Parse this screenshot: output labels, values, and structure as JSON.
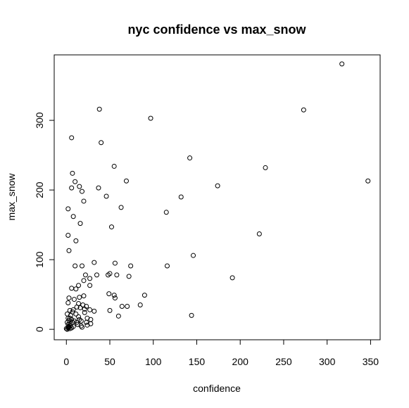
{
  "chart_data": {
    "type": "scatter",
    "title": "nyc confidence vs max_snow",
    "xlabel": "confidence",
    "ylabel": "max_snow",
    "xlim": [
      -14,
      361
    ],
    "ylim": [
      -15,
      394
    ],
    "xticks": [
      0,
      50,
      100,
      150,
      200,
      250,
      300,
      350
    ],
    "yticks": [
      0,
      100,
      200,
      300
    ],
    "grid": false,
    "legend": "none",
    "point_color": "#000000",
    "points": [
      [
        6,
        275
      ],
      [
        7,
        224
      ],
      [
        10,
        212
      ],
      [
        15,
        205
      ],
      [
        18,
        198
      ],
      [
        20,
        184
      ],
      [
        6,
        203
      ],
      [
        2,
        173
      ],
      [
        8,
        162
      ],
      [
        16,
        152
      ],
      [
        2,
        135
      ],
      [
        11,
        127
      ],
      [
        3,
        113
      ],
      [
        38,
        316
      ],
      [
        40,
        268
      ],
      [
        55,
        234
      ],
      [
        37,
        203
      ],
      [
        46,
        191
      ],
      [
        69,
        213
      ],
      [
        63,
        175
      ],
      [
        52,
        147
      ],
      [
        97,
        303
      ],
      [
        142,
        246
      ],
      [
        174,
        206
      ],
      [
        115,
        168
      ],
      [
        132,
        190
      ],
      [
        229,
        232
      ],
      [
        273,
        315
      ],
      [
        317,
        381
      ],
      [
        347,
        213
      ],
      [
        222,
        137
      ],
      [
        146,
        106
      ],
      [
        116,
        91
      ],
      [
        191,
        74
      ],
      [
        144,
        20
      ],
      [
        74,
        91
      ],
      [
        72,
        76
      ],
      [
        90,
        49
      ],
      [
        85,
        35
      ],
      [
        70,
        33
      ],
      [
        64,
        33
      ],
      [
        60,
        19
      ],
      [
        58,
        78
      ],
      [
        56,
        95
      ],
      [
        55,
        49
      ],
      [
        56,
        45
      ],
      [
        48,
        78
      ],
      [
        50,
        80
      ],
      [
        49,
        51
      ],
      [
        50,
        27
      ],
      [
        32,
        96
      ],
      [
        35,
        78
      ],
      [
        27,
        73
      ],
      [
        27,
        63
      ],
      [
        18,
        91
      ],
      [
        22,
        78
      ],
      [
        20,
        70
      ],
      [
        14,
        63
      ],
      [
        15,
        46
      ],
      [
        20,
        48
      ],
      [
        6,
        59
      ],
      [
        11,
        58
      ],
      [
        14,
        37
      ],
      [
        19,
        35
      ],
      [
        16,
        31
      ],
      [
        23,
        33
      ],
      [
        27,
        28
      ],
      [
        21,
        29
      ],
      [
        32,
        26
      ],
      [
        10,
        91
      ],
      [
        9,
        43
      ],
      [
        12,
        32
      ],
      [
        8,
        28
      ],
      [
        4,
        27
      ],
      [
        7,
        25
      ],
      [
        11,
        22
      ],
      [
        14,
        18
      ],
      [
        15,
        14
      ],
      [
        17,
        12
      ],
      [
        12,
        10
      ],
      [
        13,
        7
      ],
      [
        17,
        5
      ],
      [
        18,
        3
      ],
      [
        24,
        6
      ],
      [
        23,
        10
      ],
      [
        24,
        16
      ],
      [
        28,
        14
      ],
      [
        28,
        8
      ],
      [
        21,
        24
      ],
      [
        5,
        20
      ],
      [
        3,
        45
      ],
      [
        2,
        38
      ],
      [
        1,
        22
      ],
      [
        2,
        16
      ],
      [
        3,
        13
      ],
      [
        1,
        10
      ],
      [
        2,
        7
      ],
      [
        4,
        8
      ],
      [
        5,
        5
      ],
      [
        3,
        3
      ],
      [
        2,
        2
      ],
      [
        0,
        1
      ],
      [
        1,
        0
      ],
      [
        4,
        1
      ],
      [
        6,
        2
      ],
      [
        8,
        4
      ],
      [
        3,
        4
      ],
      [
        9,
        12
      ],
      [
        6,
        14
      ],
      [
        4,
        16
      ],
      [
        7,
        10
      ],
      [
        2,
        3
      ]
    ]
  }
}
